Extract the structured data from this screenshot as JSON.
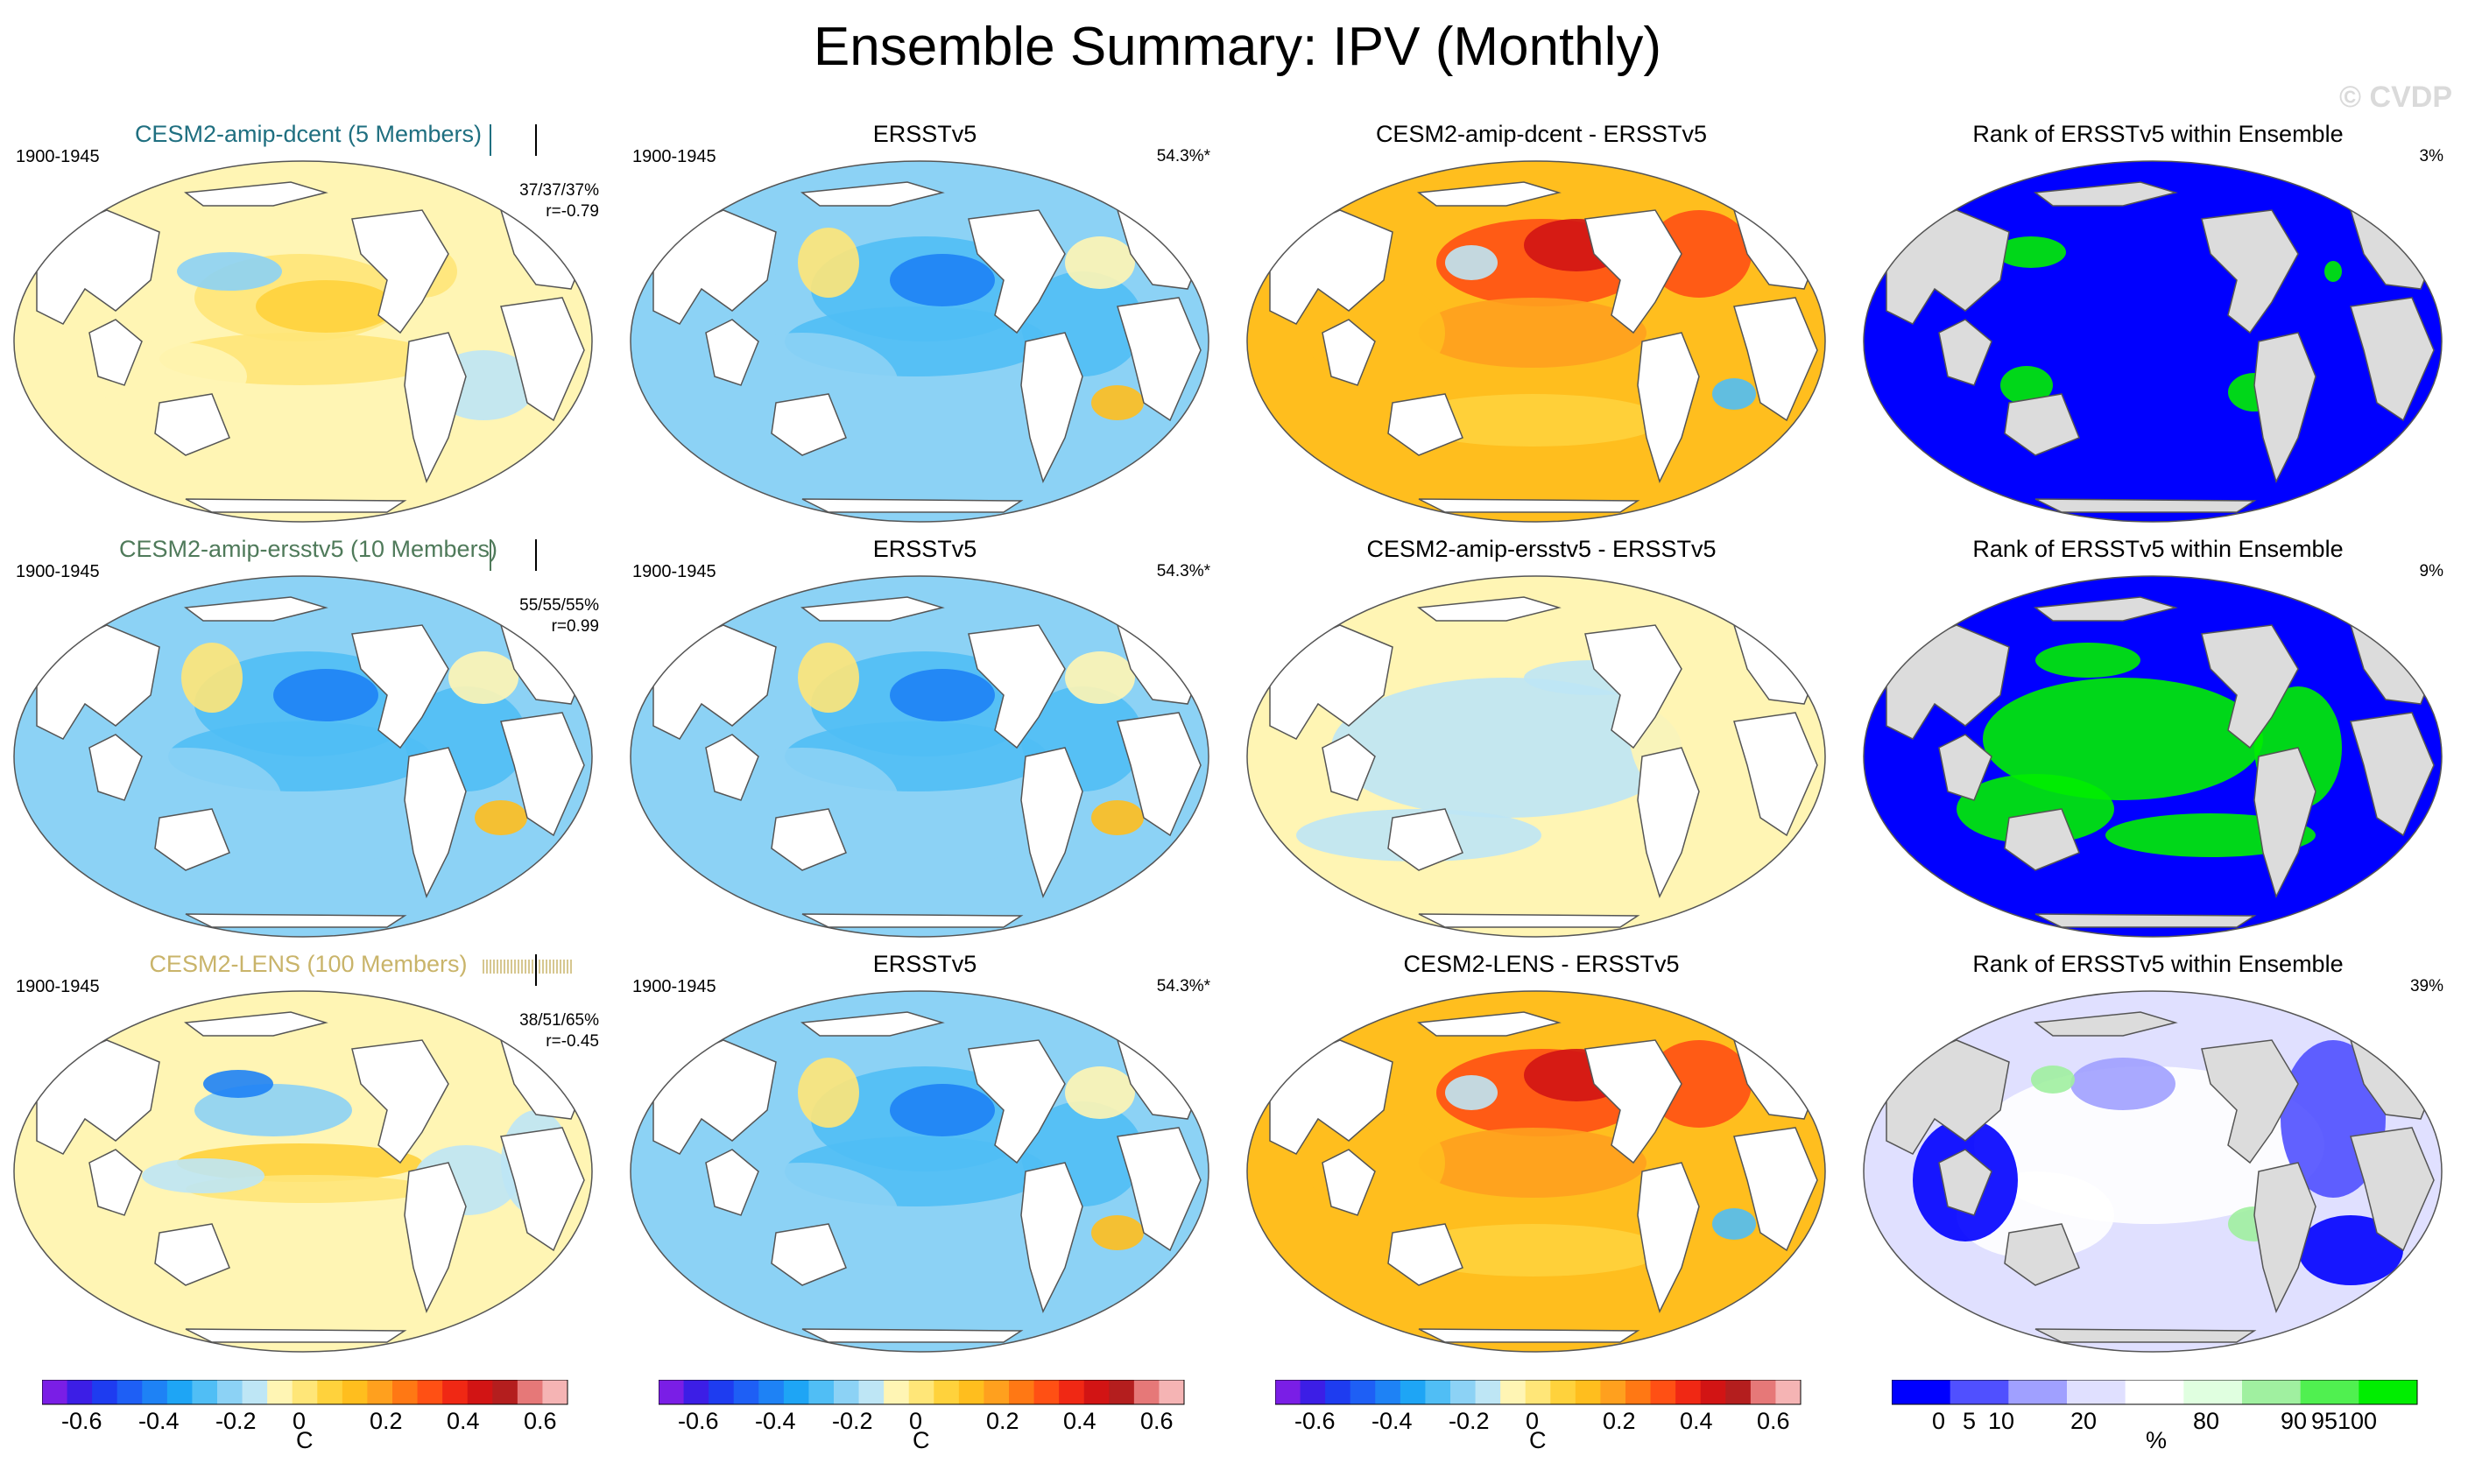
{
  "title": "Ensemble Summary: IPV (Monthly)",
  "watermark": "© CVDP",
  "panels": [
    {
      "title": "CESM2-amip-dcent (5 Members)",
      "years": "1900-1945",
      "pct": "",
      "stats": [
        "37/37/37%",
        "r=-0.79"
      ],
      "kind": "anom",
      "pattern": "dcent",
      "title_color": "#1f6f80",
      "ticks": "bars-teal"
    },
    {
      "title": "ERSSTv5",
      "years": "1900-1945",
      "pct": "54.3%*",
      "stats": [],
      "kind": "anom",
      "pattern": "obs",
      "title_color": "#000000"
    },
    {
      "title": "CESM2-amip-dcent - ERSSTv5",
      "years": "",
      "pct": "",
      "stats": [],
      "kind": "anom",
      "pattern": "diffwarm",
      "title_color": "#000000"
    },
    {
      "title": "Rank of ERSSTv5 within Ensemble",
      "years": "",
      "pct": "3%",
      "stats": [],
      "kind": "rank",
      "pattern": "rankblue",
      "title_color": "#000000"
    },
    {
      "title": "CESM2-amip-ersstv5 (10 Members)",
      "years": "1900-1945",
      "pct": "",
      "stats": [
        "55/55/55%",
        "r=0.99"
      ],
      "kind": "anom",
      "pattern": "obs",
      "title_color": "#4f7a5a",
      "ticks": "bars-green"
    },
    {
      "title": "ERSSTv5",
      "years": "1900-1945",
      "pct": "54.3%*",
      "stats": [],
      "kind": "anom",
      "pattern": "obs",
      "title_color": "#000000"
    },
    {
      "title": "CESM2-amip-ersstv5 - ERSSTv5",
      "years": "",
      "pct": "",
      "stats": [],
      "kind": "anom",
      "pattern": "diffsmall",
      "title_color": "#000000"
    },
    {
      "title": "Rank of ERSSTv5 within Ensemble",
      "years": "",
      "pct": "9%",
      "stats": [],
      "kind": "rank",
      "pattern": "rankmix",
      "title_color": "#000000"
    },
    {
      "title": "CESM2-LENS (100 Members)",
      "years": "1900-1945",
      "pct": "",
      "stats": [
        "38/51/65%",
        "r=-0.45"
      ],
      "kind": "anom",
      "pattern": "lens",
      "title_color": "#c9b46a",
      "ticks": "bars-gold"
    },
    {
      "title": "ERSSTv5",
      "years": "1900-1945",
      "pct": "54.3%*",
      "stats": [],
      "kind": "anom",
      "pattern": "obs",
      "title_color": "#000000"
    },
    {
      "title": "CESM2-LENS - ERSSTv5",
      "years": "",
      "pct": "",
      "stats": [],
      "kind": "anom",
      "pattern": "diffwarm",
      "title_color": "#000000"
    },
    {
      "title": "Rank of ERSSTv5 within Ensemble",
      "years": "",
      "pct": "39%",
      "stats": [],
      "kind": "rank",
      "pattern": "rankwhite",
      "title_color": "#000000"
    }
  ],
  "colorbars": [
    {
      "type": "anom",
      "labels": [
        "-0.6",
        "-0.4",
        "-0.2",
        "0",
        "0.2",
        "0.4",
        "0.6"
      ],
      "unit": "C"
    },
    {
      "type": "anom",
      "labels": [
        "-0.6",
        "-0.4",
        "-0.2",
        "0",
        "0.2",
        "0.4",
        "0.6"
      ],
      "unit": "C"
    },
    {
      "type": "anom",
      "labels": [
        "-0.6",
        "-0.4",
        "-0.2",
        "0",
        "0.2",
        "0.4",
        "0.6"
      ],
      "unit": "C"
    },
    {
      "type": "rank",
      "labels": [
        "0",
        "5",
        "10",
        "20",
        "80",
        "90",
        "95",
        "100"
      ],
      "unit": "%"
    }
  ],
  "anom_colors": [
    "#7a1ee6",
    "#3c1ee6",
    "#1e3cf0",
    "#1e5ff5",
    "#1e82f5",
    "#1ea5f5",
    "#50bef5",
    "#8cd2f5",
    "#bee6f5",
    "#fff5b4",
    "#ffe678",
    "#ffd23c",
    "#ffbe1e",
    "#ffa01e",
    "#ff7814",
    "#ff5014",
    "#f02814",
    "#d21414",
    "#b41e1e",
    "#e67878",
    "#f5b4b4"
  ],
  "rank_colors": [
    "#0000ff",
    "#5050ff",
    "#a0a0ff",
    "#e0e0ff",
    "#ffffff",
    "#e0ffe0",
    "#a0f0a0",
    "#50f050",
    "#00ee00"
  ]
}
